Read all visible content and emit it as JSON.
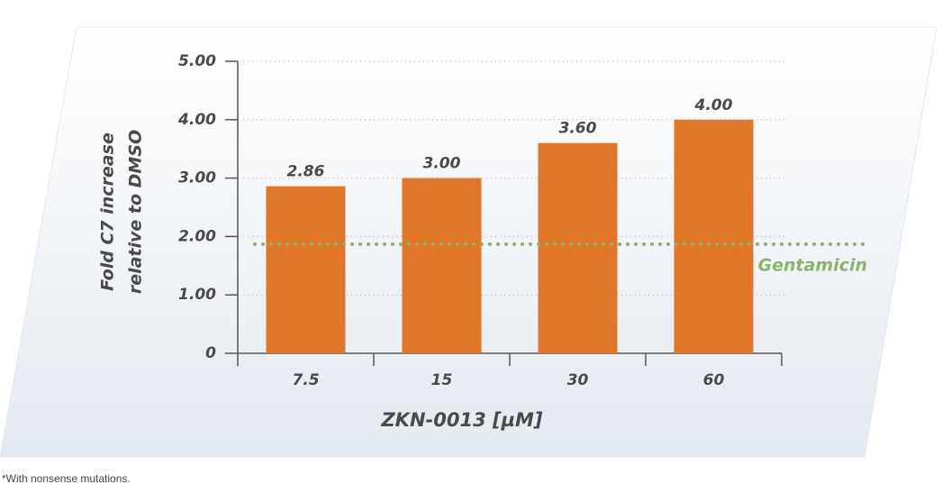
{
  "chart_data": {
    "type": "bar",
    "y_label": [
      "Fold C7 increase",
      "relative to DMSO"
    ],
    "x_label": "ZKN-0013 [µM]",
    "categories": [
      "7.5",
      "15",
      "30",
      "60"
    ],
    "values": [
      2.86,
      3,
      3.6,
      4
    ],
    "value_labels": [
      "2.86",
      "3.00",
      "3.60",
      "4.00"
    ],
    "color": "#e07628",
    "ylim": [
      0,
      5
    ],
    "yticks": [
      0,
      {
        "value": 1,
        "label": "1.00"
      },
      {
        "value": 2,
        "label": "2.00"
      },
      {
        "value": 3,
        "label": "3.00"
      },
      {
        "value": 4,
        "label": "4.00"
      },
      {
        "value": 5,
        "label": "5.00"
      }
    ],
    "grid": true,
    "reference_line": {
      "name": "Gentamicin",
      "value": 1.87,
      "color": "#8db36a"
    },
    "footnote": "*With nonsense mutations."
  }
}
